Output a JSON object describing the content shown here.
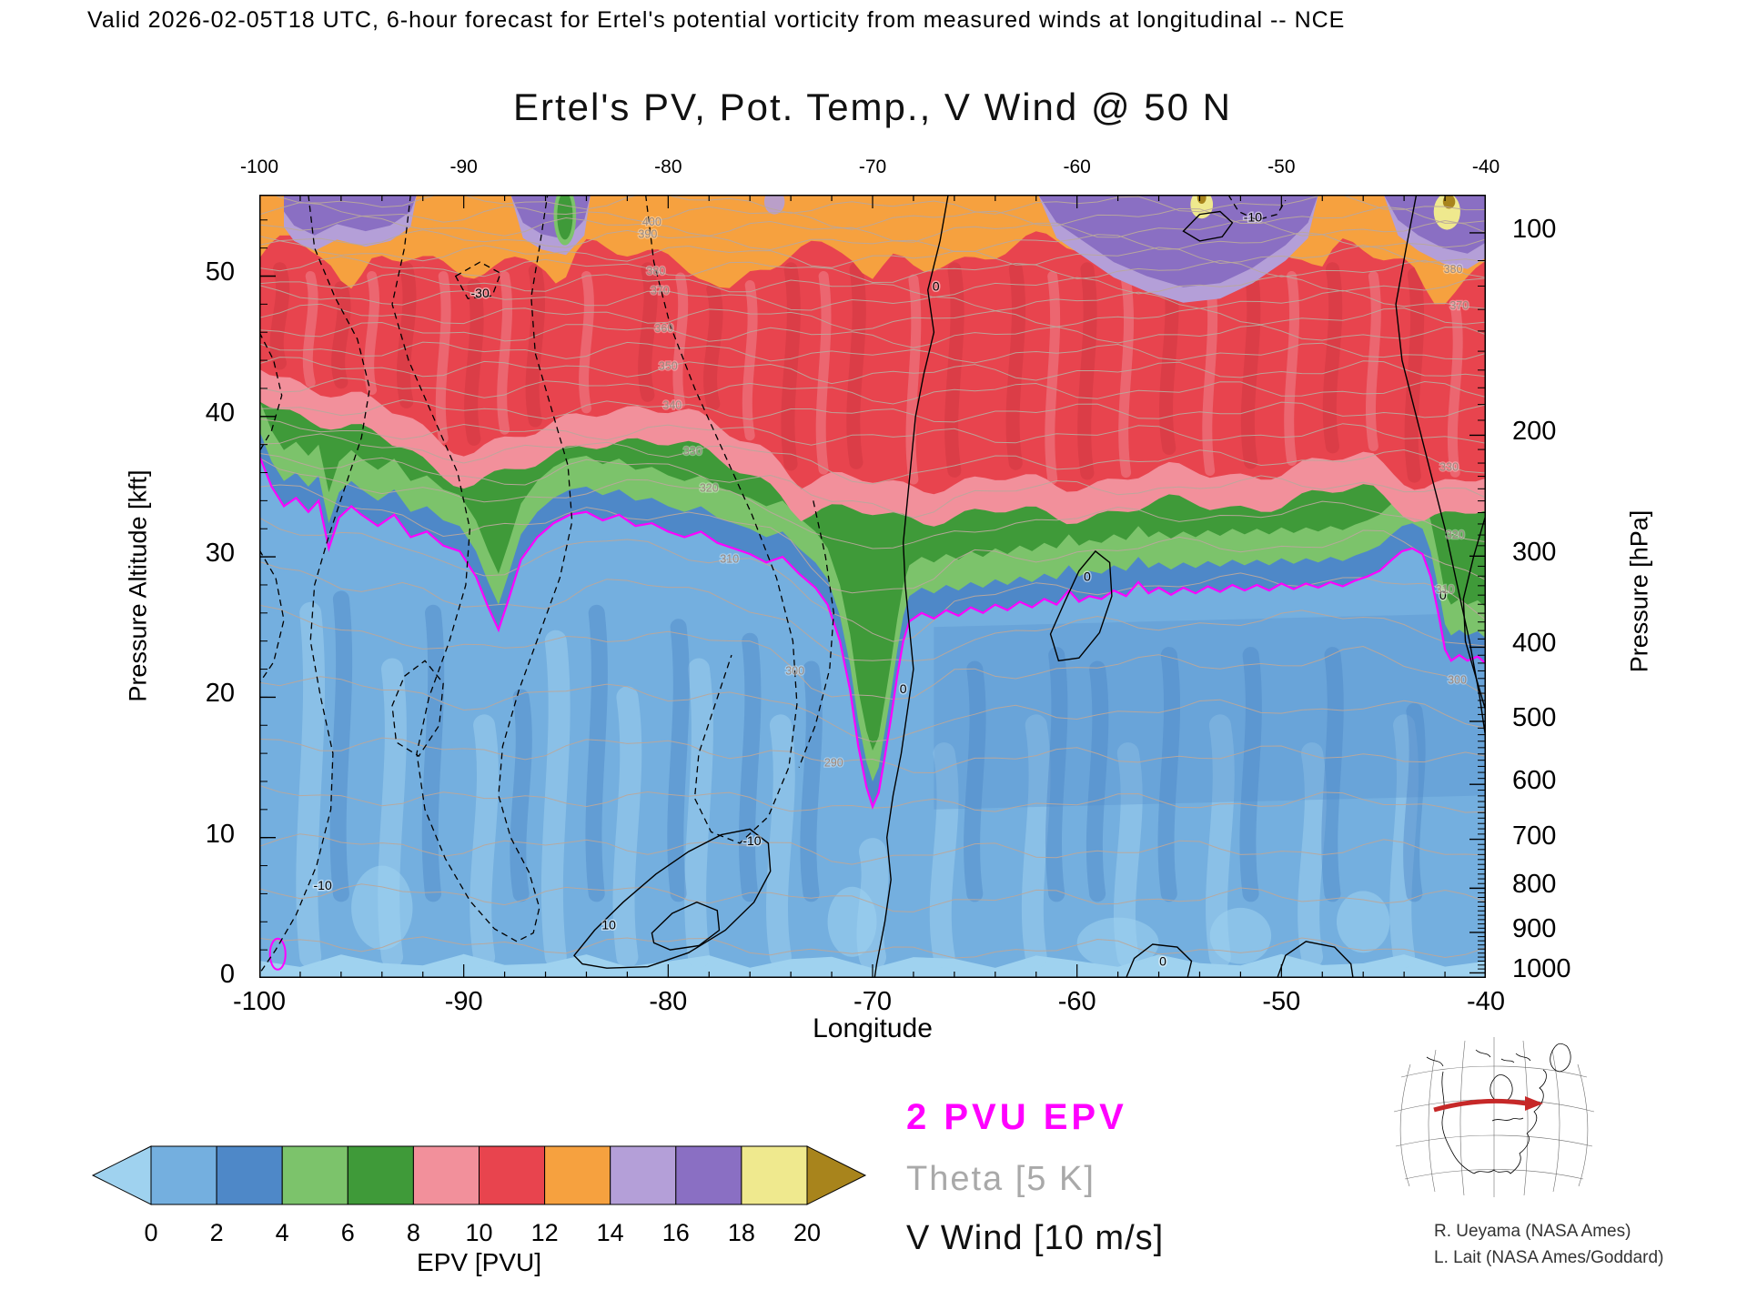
{
  "header": {
    "valid_line": "Valid 2026-02-05T18 UTC, 6-hour forecast for Ertel's potential vorticity from measured winds at longitudinal -- NCE"
  },
  "title": "Ertel's PV, Pot. Temp., V Wind @ 50 N",
  "legend": {
    "items": [
      {
        "label": "2 PVU EPV",
        "color": "#FF00FF"
      },
      {
        "label": "Theta [5 K]",
        "color": "#A9A9A9"
      },
      {
        "label": "V Wind [10 m/s]",
        "color": "#111111"
      }
    ]
  },
  "credits": {
    "line1": "R. Ueyama (NASA Ames)",
    "line2": "L. Lait (NASA Ames/Goddard)"
  },
  "chart_data": {
    "type": "heatmap",
    "title": "Ertel's PV, Pot. Temp., V Wind @ 50 N",
    "field": "Ertel's potential vorticity cross-section at 50 N",
    "x_axis": {
      "label": "Longitude",
      "min": -100,
      "max": -40,
      "ticks": [
        -100,
        -90,
        -80,
        -70,
        -60,
        -50,
        -40
      ]
    },
    "y_left_axis": {
      "label": "Pressure Altitude [kft]",
      "min": 0,
      "max": 55.8,
      "ticks": [
        0,
        10,
        20,
        30,
        40,
        50
      ]
    },
    "y_right_axis": {
      "label": "Pressure [hPa]",
      "ticks": [
        100,
        200,
        300,
        400,
        500,
        600,
        700,
        800,
        900,
        1000
      ]
    },
    "colorbar": {
      "label": "EPV [PVU]",
      "ticks": [
        0,
        2,
        4,
        6,
        8,
        10,
        12,
        14,
        16,
        18,
        20
      ],
      "colors": {
        "under": "#9FD2EF",
        "segments": [
          "#74AFDF",
          "#4E88C8",
          "#7CC36B",
          "#3F9A39",
          "#F2909B",
          "#E8444E",
          "#F6A13F",
          "#B49FD8",
          "#8A6FC3",
          "#EFE98E"
        ],
        "over": "#A8841C"
      }
    },
    "overlays": [
      {
        "name": "2 PVU EPV contour",
        "color": "#FF00FF"
      },
      {
        "name": "Theta contours every 5 K",
        "color": "#B8A79B"
      },
      {
        "name": "V Wind contours every 10 m/s",
        "color": "#000000"
      }
    ],
    "tropopause_2pvu_contour": {
      "units": [
        "longitude_deg",
        "pressure_altitude_kft"
      ],
      "points": [
        [
          -100,
          37.2
        ],
        [
          -99.4,
          35
        ],
        [
          -98.8,
          33.6
        ],
        [
          -98.2,
          34.2
        ],
        [
          -97.6,
          33.2
        ],
        [
          -97.1,
          34
        ],
        [
          -96.6,
          30.6
        ],
        [
          -96.1,
          32.8
        ],
        [
          -95.5,
          33.6
        ],
        [
          -95,
          33
        ],
        [
          -94.2,
          32.2
        ],
        [
          -93.4,
          33
        ],
        [
          -92.6,
          31.4
        ],
        [
          -91.8,
          31.8
        ],
        [
          -91,
          30.8
        ],
        [
          -90.2,
          30.4
        ],
        [
          -89.4,
          28.6
        ],
        [
          -88.8,
          26.4
        ],
        [
          -88.3,
          24.8
        ],
        [
          -87.8,
          27
        ],
        [
          -87.2,
          29.8
        ],
        [
          -86.4,
          31.4
        ],
        [
          -85.6,
          32.4
        ],
        [
          -84.8,
          33
        ],
        [
          -84,
          33.2
        ],
        [
          -83.2,
          32.6
        ],
        [
          -82.4,
          33
        ],
        [
          -81.6,
          32.2
        ],
        [
          -80.8,
          32.4
        ],
        [
          -80,
          31.8
        ],
        [
          -79.2,
          31.4
        ],
        [
          -78.4,
          31.8
        ],
        [
          -77.6,
          31
        ],
        [
          -76.8,
          30.6
        ],
        [
          -76,
          30.2
        ],
        [
          -75.2,
          29.6
        ],
        [
          -74.4,
          30
        ],
        [
          -73.6,
          28.8
        ],
        [
          -72.8,
          27.8
        ],
        [
          -72.2,
          26.6
        ],
        [
          -71.6,
          24
        ],
        [
          -71.1,
          20.5
        ],
        [
          -70.7,
          16.5
        ],
        [
          -70.3,
          13.6
        ],
        [
          -70,
          12.2
        ],
        [
          -69.7,
          13.2
        ],
        [
          -69.4,
          15.8
        ],
        [
          -69.1,
          18.5
        ],
        [
          -68.8,
          21.5
        ],
        [
          -68.5,
          24
        ],
        [
          -68.2,
          25.4
        ],
        [
          -67.6,
          26
        ],
        [
          -67,
          25.6
        ],
        [
          -66.4,
          26.2
        ],
        [
          -65.8,
          25.8
        ],
        [
          -65.2,
          26.4
        ],
        [
          -64.6,
          26
        ],
        [
          -64,
          26.6
        ],
        [
          -63.4,
          26.2
        ],
        [
          -62.8,
          26.8
        ],
        [
          -62.2,
          26.4
        ],
        [
          -61.6,
          27
        ],
        [
          -61,
          26.6
        ],
        [
          -60.4,
          27.6
        ],
        [
          -59.9,
          26.8
        ],
        [
          -59.4,
          27.2
        ],
        [
          -58.8,
          27
        ],
        [
          -58.2,
          27.6
        ],
        [
          -57.6,
          27.2
        ],
        [
          -57,
          28.2
        ],
        [
          -56.5,
          27.4
        ],
        [
          -56,
          27.8
        ],
        [
          -55.4,
          27.3
        ],
        [
          -54.8,
          27.8
        ],
        [
          -54.2,
          27.4
        ],
        [
          -53.6,
          27.9
        ],
        [
          -53,
          27.5
        ],
        [
          -52.4,
          28
        ],
        [
          -51.8,
          27.6
        ],
        [
          -51.2,
          28
        ],
        [
          -50.6,
          27.6
        ],
        [
          -50,
          28.1
        ],
        [
          -49.4,
          27.7
        ],
        [
          -48.8,
          28.1
        ],
        [
          -48.2,
          27.8
        ],
        [
          -47.6,
          28.2
        ],
        [
          -47,
          27.9
        ],
        [
          -46.4,
          28.3
        ],
        [
          -45.8,
          28.6
        ],
        [
          -45.2,
          29
        ],
        [
          -44.6,
          29.8
        ],
        [
          -44.1,
          30.4
        ],
        [
          -43.6,
          30.6
        ],
        [
          -43.1,
          30.2
        ],
        [
          -42.7,
          28.6
        ],
        [
          -42.3,
          25.8
        ],
        [
          -42,
          23.4
        ],
        [
          -41.7,
          22.6
        ],
        [
          -41.3,
          23
        ],
        [
          -40.9,
          22.6
        ],
        [
          -40.4,
          22.9
        ],
        [
          -40,
          22.4
        ]
      ],
      "small_closed_contour": {
        "lon": -99.1,
        "kft": 1.7
      }
    },
    "theta_contour_labels": [
      {
        "value": 400,
        "lon": -80.8
      },
      {
        "value": 390,
        "lon": -81.0
      },
      {
        "value": 380,
        "lon": -80.6
      },
      {
        "value": 370,
        "lon": -80.4
      },
      {
        "value": 360,
        "lon": -80.2
      },
      {
        "value": 350,
        "lon": -80.0
      },
      {
        "value": 340,
        "lon": -79.8
      },
      {
        "value": 330,
        "lon": -78.8
      },
      {
        "value": 320,
        "lon": -78.0
      },
      {
        "value": 310,
        "lon": -77.0
      },
      {
        "value": 300,
        "lon": -73.8
      },
      {
        "value": 290,
        "lon": -71.9
      },
      {
        "value": 380,
        "lon": -41.6
      },
      {
        "value": 370,
        "lon": -41.3
      },
      {
        "value": 330,
        "lon": -41.8
      },
      {
        "value": 320,
        "lon": -41.5
      },
      {
        "value": 310,
        "lon": -42.0
      },
      {
        "value": 300,
        "lon": -41.4
      }
    ],
    "vwind_contour_labels": [
      {
        "value": "0",
        "lon": -66.9,
        "kft": 49.3
      },
      {
        "value": "0",
        "lon": -68.5,
        "kft": 20.6
      },
      {
        "value": "-30",
        "lon": -89.2,
        "kft": 48.8
      },
      {
        "value": "-10",
        "lon": -96.9,
        "kft": 6.6
      },
      {
        "value": "-10",
        "lon": -75.9,
        "kft": 9.8
      },
      {
        "value": "10",
        "lon": -82.9,
        "kft": 3.8
      },
      {
        "value": "0",
        "lon": -59.5,
        "kft": 28.6
      },
      {
        "value": "0",
        "lon": -42.1,
        "kft": 27.3
      },
      {
        "value": "-10",
        "lon": -51.4,
        "kft": 54.2
      },
      {
        "value": "0",
        "lon": -55.8,
        "kft": 1.2
      }
    ]
  }
}
